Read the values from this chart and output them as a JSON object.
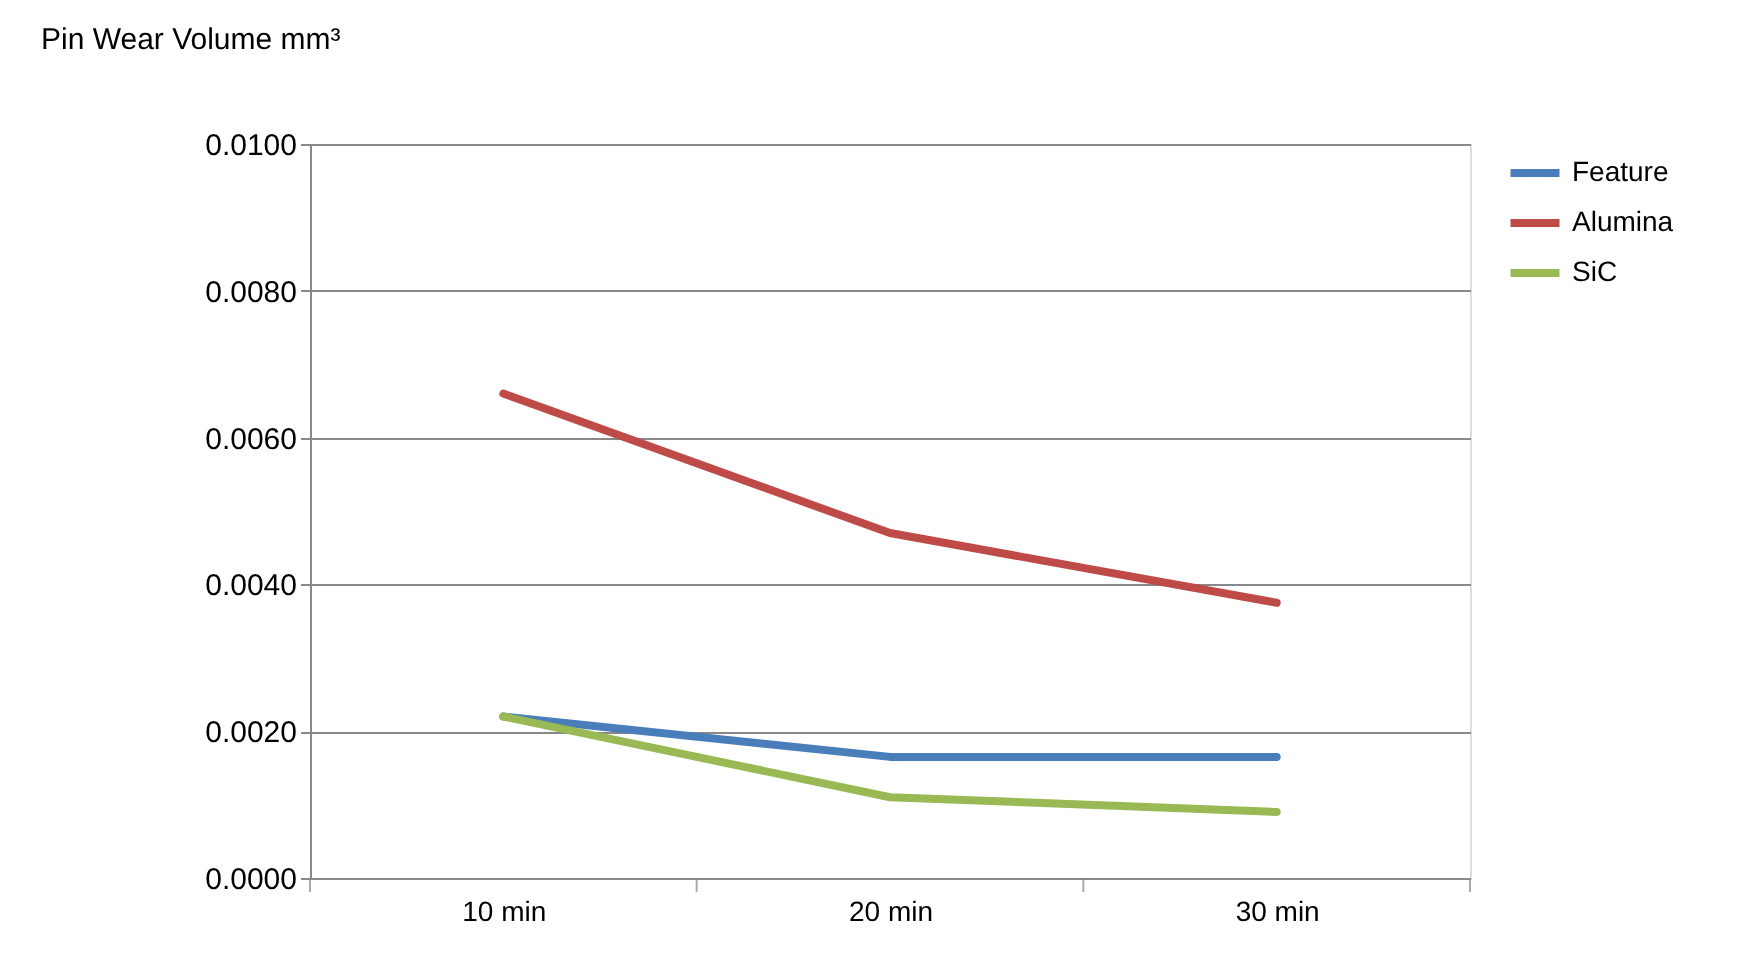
{
  "chart_data": {
    "type": "line",
    "ylabel": "Pin Wear Volume mm³",
    "categories": [
      "10 min",
      "20 min",
      "30 min"
    ],
    "series": [
      {
        "name": "Feature",
        "color": "#4a7ebb",
        "values": [
          0.0022,
          0.00165,
          0.00165
        ]
      },
      {
        "name": "Alumina",
        "color": "#be4b48",
        "values": [
          0.0066,
          0.0047,
          0.00375
        ]
      },
      {
        "name": "SiC",
        "color": "#98b954",
        "values": [
          0.0022,
          0.0011,
          0.0009
        ]
      }
    ],
    "ylim": [
      0,
      0.01
    ],
    "yticks": [
      {
        "value": 0,
        "label": "0.0000"
      },
      {
        "value": 0.002,
        "label": "0.0020"
      },
      {
        "value": 0.004,
        "label": "0.0040"
      },
      {
        "value": 0.006,
        "label": "0.0060"
      },
      {
        "value": 0.008,
        "label": "0.0080"
      },
      {
        "value": 0.01,
        "label": "0.0100"
      }
    ],
    "grid": "y",
    "legend": "right",
    "marker": "none",
    "line_style": "solid"
  }
}
